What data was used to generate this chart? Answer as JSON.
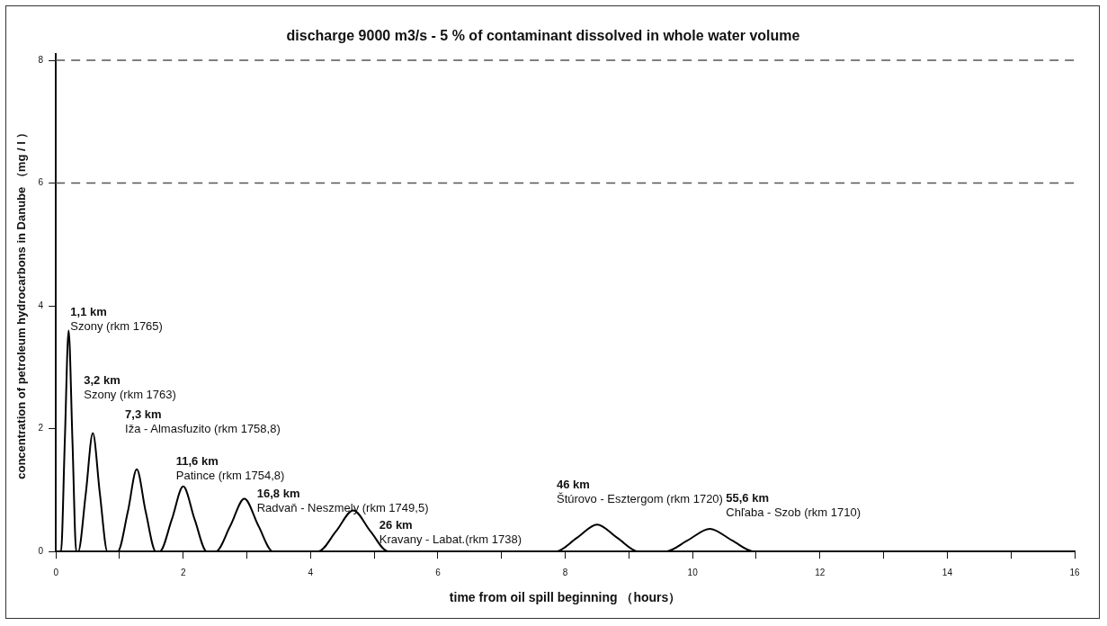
{
  "chart_data": {
    "type": "line",
    "title": "discharge 9000 m3/s - 5 % of contaminant dissolved in whole water volume",
    "xlabel": "time from oil spill beginning （hours）",
    "ylabel": "concentration of petroleum hydrocarbons in Danube （mg / l ）",
    "x": [
      0,
      0.08,
      0.14,
      0.2,
      0.26,
      0.32,
      0.35,
      0.47,
      0.58,
      0.69,
      0.81,
      0.97,
      1.13,
      1.27,
      1.41,
      1.57,
      1.63,
      1.82,
      2.0,
      2.18,
      2.37,
      2.51,
      2.74,
      2.96,
      3.18,
      3.41,
      4.12,
      4.4,
      4.67,
      4.94,
      5.22,
      7.85,
      8.18,
      8.5,
      8.82,
      9.15,
      9.57,
      9.92,
      10.27,
      10.62,
      10.97,
      16
    ],
    "series": [
      {
        "color": "#000000",
        "values": [
          0,
          0,
          1.8,
          3.6,
          1.8,
          0,
          0,
          0.95,
          1.93,
          0.95,
          0,
          0,
          0.65,
          1.34,
          0.65,
          0,
          0,
          0.52,
          1.06,
          0.52,
          0,
          0,
          0.42,
          0.86,
          0.42,
          0,
          0,
          0.33,
          0.67,
          0.33,
          0,
          0,
          0.22,
          0.44,
          0.22,
          0,
          0,
          0.18,
          0.37,
          0.18,
          0,
          0
        ]
      }
    ],
    "xlim": [
      0,
      16
    ],
    "xticks": [
      0,
      {
        "value": 1,
        "label": null
      },
      2,
      {
        "value": 3,
        "label": null
      },
      4,
      {
        "value": 5,
        "label": null
      },
      6,
      {
        "value": 7,
        "label": null
      },
      8,
      {
        "value": 9,
        "label": null
      },
      10,
      {
        "value": 11,
        "label": null
      },
      12,
      {
        "value": 13,
        "label": null
      },
      14,
      {
        "value": 15,
        "label": null
      },
      16
    ],
    "ylim": [
      0,
      8.1
    ],
    "yticks": [
      0,
      2,
      4,
      6,
      8
    ],
    "ref_lines": [
      {
        "axis": "y",
        "value": 6,
        "color": "#555555",
        "line_style": "dashed"
      },
      {
        "axis": "y",
        "value": 8,
        "color": "#555555",
        "line_style": "dashed"
      }
    ],
    "annotations": [
      {
        "text": "1,1 km\nSzony (rkm 1765)",
        "x": 0.2,
        "y": 3.6
      },
      {
        "text": "3,2 km\nSzony (rkm 1763)",
        "x": 0.58,
        "y": 1.93
      },
      {
        "text": "7,3 km\nIža - Almasfuzito (rkm 1758,8)",
        "x": 1.27,
        "y": 1.34
      },
      {
        "text": "11,6 km\nPatince (rkm 1754,8)",
        "x": 2.0,
        "y": 1.06
      },
      {
        "text": "16,8 km\nRadvaň - Neszmely (rkm 1749,5)",
        "x": 2.96,
        "y": 0.86
      },
      {
        "text": "26 km\nKravany - Labat.(rkm 1738)",
        "x": 4.67,
        "y": 0.67
      },
      {
        "text": "46 km\nŠtúrovo - Esztergom (rkm 1720)",
        "x": 8.5,
        "y": 0.44
      },
      {
        "text": "55,6 km\nChľaba - Szob (rkm 1710)",
        "x": 10.27,
        "y": 0.37
      }
    ],
    "legend": false,
    "marker": "none",
    "line_style": "solid"
  }
}
